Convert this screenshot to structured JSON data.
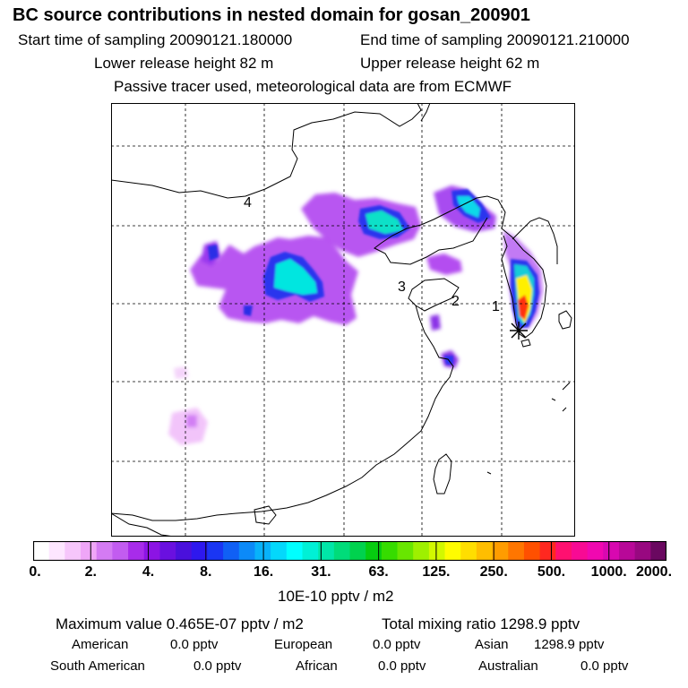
{
  "header": {
    "title": "BC  source contributions in nested domain for gosan_200901",
    "start_label": "Start time of sampling 20090121.180000",
    "end_label": "End time of sampling 20090121.210000",
    "lower_release": "Lower release height   82 m",
    "upper_release": "Upper release height   62 m",
    "tracer_note": "Passive tracer used, meteorological data are from ECMWF"
  },
  "map": {
    "region_labels": [
      "1",
      "2",
      "3",
      "4"
    ],
    "receptor_marker": "asterisk-icon"
  },
  "colorbar": {
    "colors": [
      "#ffffff",
      "#fde6ff",
      "#f6c6fb",
      "#efa6f8",
      "#d47bf3",
      "#c25cf0",
      "#a82cea",
      "#8c14e4",
      "#6a10e0",
      "#4a10dc",
      "#2e18ee",
      "#1a36f3",
      "#1060f5",
      "#0c8af8",
      "#08b2fa",
      "#04d8fb",
      "#00ffff",
      "#00f0d6",
      "#00e6a8",
      "#00dc7a",
      "#00d24e",
      "#06cc10",
      "#36dc00",
      "#68e600",
      "#9ef000",
      "#d2f800",
      "#fffc00",
      "#ffde00",
      "#ffbe00",
      "#ff9c00",
      "#ff7600",
      "#ff5000",
      "#ff2820",
      "#ff1070",
      "#f80a94",
      "#f008b0",
      "#d808b0",
      "#b80898",
      "#980880",
      "#6a0860"
    ],
    "ticks": [
      "0.",
      "2.",
      "4.",
      "8.",
      "16.",
      "31.",
      "63.",
      "125.",
      "250.",
      "500.",
      "1000.",
      "2000."
    ],
    "unit": "10E-10 pptv / m2"
  },
  "summary": {
    "max_value": "Maximum value  0.465E-07 pptv / m2",
    "total_mixing": "Total mixing ratio     1298.9 pptv"
  },
  "regions": {
    "american_label": "American",
    "american_value": "0.0 pptv",
    "european_label": "European",
    "european_value": "0.0 pptv",
    "asian_label": "Asian",
    "asian_value": "1298.9 pptv",
    "south_american_label": "South American",
    "south_american_value": "0.0 pptv",
    "african_label": "African",
    "african_value": "0.0 pptv",
    "australian_label": "Australian",
    "australian_value": "0.0 pptv"
  }
}
